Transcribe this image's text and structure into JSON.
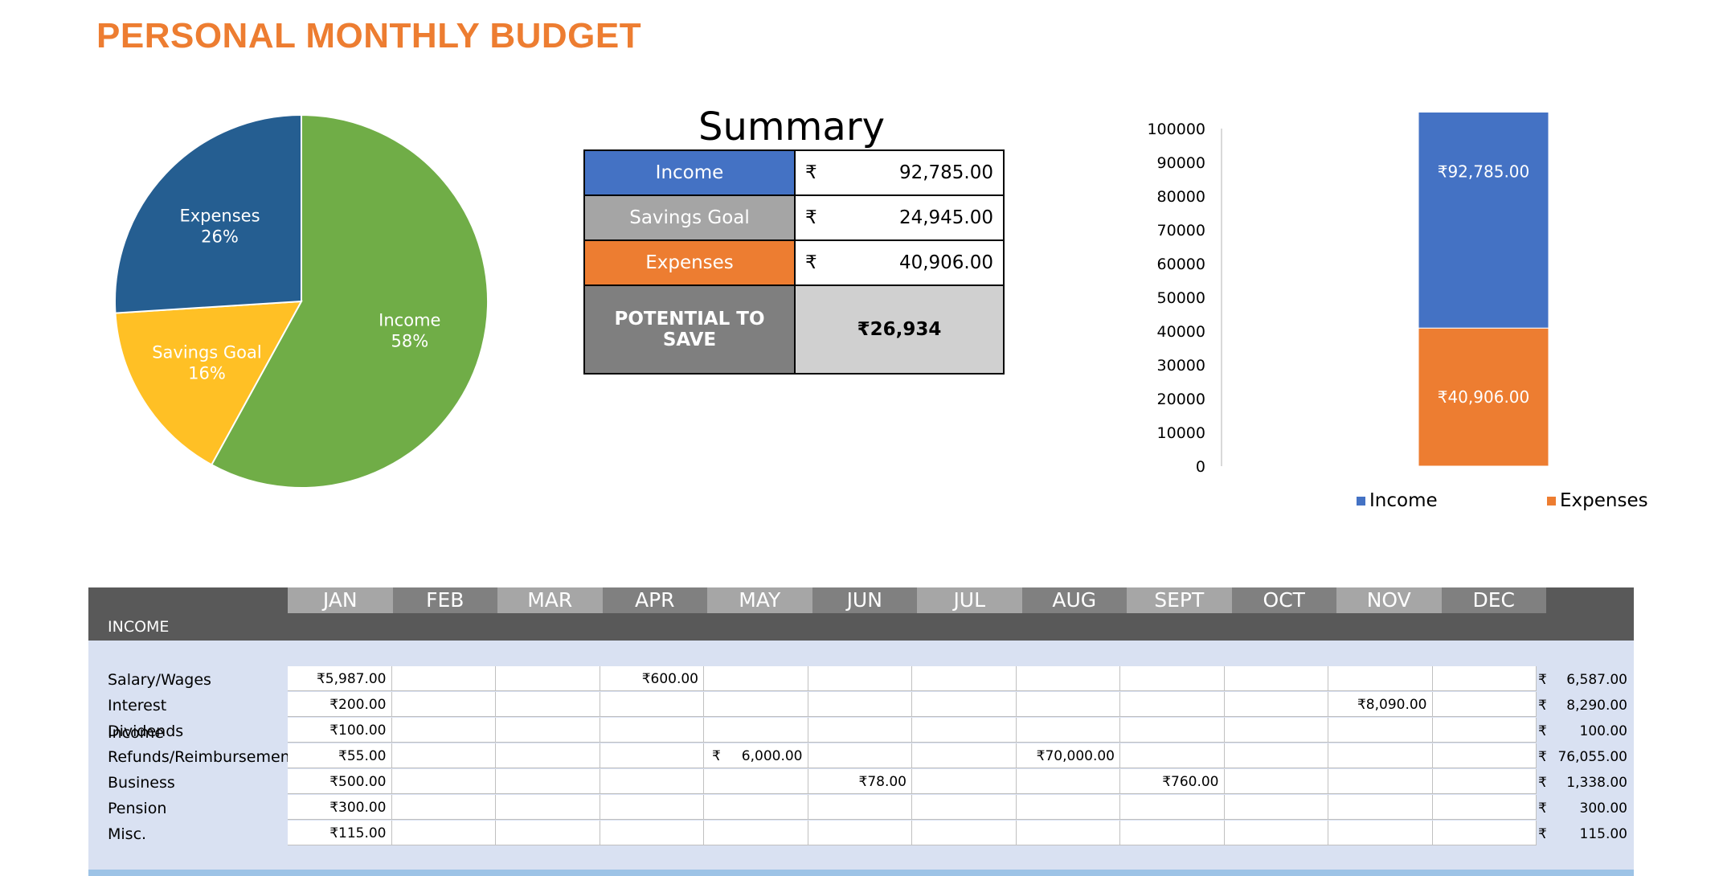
{
  "title": "PERSONAL MONTHLY BUDGET",
  "pie_chart": {
    "type": "pie",
    "slices": [
      {
        "label": "Income",
        "pct_label": "58%",
        "value": 58,
        "color": "#70AD47"
      },
      {
        "label": "Savings Goal",
        "pct_label": "16%",
        "value": 16,
        "color": "#FFC025"
      },
      {
        "label": "Expenses",
        "pct_label": "26%",
        "value": 26,
        "color": "#255E91"
      }
    ]
  },
  "summary": {
    "heading": "Summary",
    "currency": "₹",
    "rows": [
      {
        "label": "Income",
        "value": "92,785.00",
        "color": "#4472C4"
      },
      {
        "label": "Savings Goal",
        "value": "24,945.00",
        "color": "#A5A5A5"
      },
      {
        "label": "Expenses",
        "value": "40,906.00",
        "color": "#ED7D31"
      }
    ],
    "potential_label": "POTENTIAL TO SAVE",
    "potential_value": "₹26,934"
  },
  "chart_data": {
    "type": "bar",
    "stacked": true,
    "ylim": [
      0,
      100000
    ],
    "yticks": [
      0,
      10000,
      20000,
      30000,
      40000,
      50000,
      60000,
      70000,
      80000,
      90000,
      100000
    ],
    "series": [
      {
        "name": "Expenses",
        "value": 40906,
        "label": "₹40,906.00",
        "color": "#ED7D31"
      },
      {
        "name": "Income",
        "value": 92785,
        "label": "₹92,785.00",
        "color": "#4472C4"
      }
    ],
    "legend": [
      "Income",
      "Expenses"
    ],
    "legend_placement": "bottom"
  },
  "grid": {
    "section_label": "INCOME",
    "months": [
      "JAN",
      "FEB",
      "MAR",
      "APR",
      "MAY",
      "JUN",
      "JUL",
      "AUG",
      "SEPT",
      "OCT",
      "NOV",
      "DEC"
    ],
    "rows": [
      {
        "label": "Salary/Wages",
        "cells": [
          "₹5,987.00",
          "",
          "",
          "₹600.00",
          "",
          "",
          "",
          "",
          "",
          "",
          "",
          ""
        ],
        "total": "6,587.00"
      },
      {
        "label": "Interest Income",
        "cells": [
          "₹200.00",
          "",
          "",
          "",
          "",
          "",
          "",
          "",
          "",
          "",
          "₹8,090.00",
          ""
        ],
        "total": "8,290.00"
      },
      {
        "label": "Dividends",
        "cells": [
          "₹100.00",
          "",
          "",
          "",
          "",
          "",
          "",
          "",
          "",
          "",
          "",
          ""
        ],
        "total": "100.00"
      },
      {
        "label": "Refunds/Reimbursements",
        "cells": [
          "₹55.00",
          "",
          "",
          "",
          "6,000.00",
          "",
          "",
          "₹70,000.00",
          "",
          "",
          "",
          ""
        ],
        "total": "76,055.00"
      },
      {
        "label": "Business",
        "cells": [
          "₹500.00",
          "",
          "",
          "",
          "",
          "₹78.00",
          "",
          "",
          "₹760.00",
          "",
          "",
          ""
        ],
        "total": "1,338.00"
      },
      {
        "label": "Pension",
        "cells": [
          "₹300.00",
          "",
          "",
          "",
          "",
          "",
          "",
          "",
          "",
          "",
          "",
          ""
        ],
        "total": "300.00"
      },
      {
        "label": "Misc.",
        "cells": [
          "₹115.00",
          "",
          "",
          "",
          "",
          "",
          "",
          "",
          "",
          "",
          "",
          ""
        ],
        "total": "115.00"
      }
    ],
    "total_currency": "₹",
    "may_refunds_symbol": "₹"
  }
}
